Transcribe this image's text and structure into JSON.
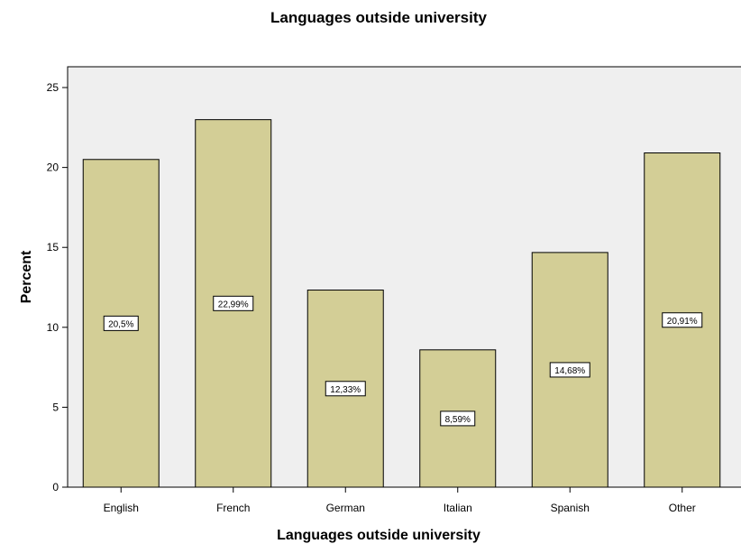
{
  "chart_data": {
    "type": "bar",
    "title": "Languages outside university",
    "xlabel": "Languages outside university",
    "ylabel": "Percent",
    "categories": [
      "English",
      "French",
      "German",
      "Italian",
      "Spanish",
      "Other"
    ],
    "values": [
      20.5,
      22.99,
      12.33,
      8.59,
      14.68,
      20.91
    ],
    "data_labels": [
      "20,5%",
      "22,99%",
      "12,33%",
      "8,59%",
      "14,68%",
      "20,91%"
    ],
    "ylim": [
      0,
      26.3
    ],
    "yticks": [
      0,
      5,
      10,
      15,
      20,
      25
    ],
    "grid": false,
    "legend": "none",
    "colors": {
      "bar_fill": "#d3ce96",
      "bar_stroke": "#000000",
      "plot_background": "#efefef",
      "label_box": "#ffffff"
    }
  }
}
